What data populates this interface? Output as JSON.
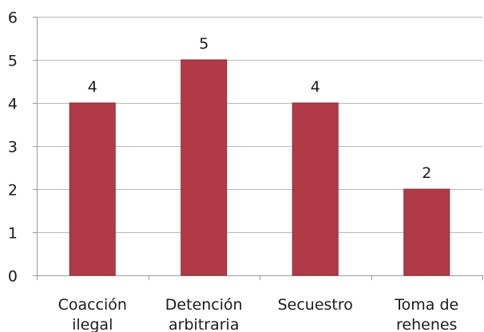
{
  "chart_data": {
    "type": "bar",
    "categories": [
      [
        "Coacción",
        "ilegal"
      ],
      [
        "Detención",
        "arbitraria"
      ],
      [
        "Secuestro"
      ],
      [
        "Toma de",
        "rehenes"
      ]
    ],
    "series": [
      {
        "values": [
          4,
          5,
          4,
          2
        ]
      }
    ],
    "data_labels": [
      "4",
      "5",
      "4",
      "2"
    ],
    "y_ticks": [
      "0",
      "1",
      "2",
      "3",
      "4",
      "5",
      "6"
    ],
    "ylim": [
      0,
      6
    ],
    "grid": true,
    "legend": "none",
    "colors": {
      "bar": "#b03a48",
      "bar_edge": "#8e2a36",
      "grid": "#b8b8b8",
      "axis": "#9a9a9a"
    }
  }
}
